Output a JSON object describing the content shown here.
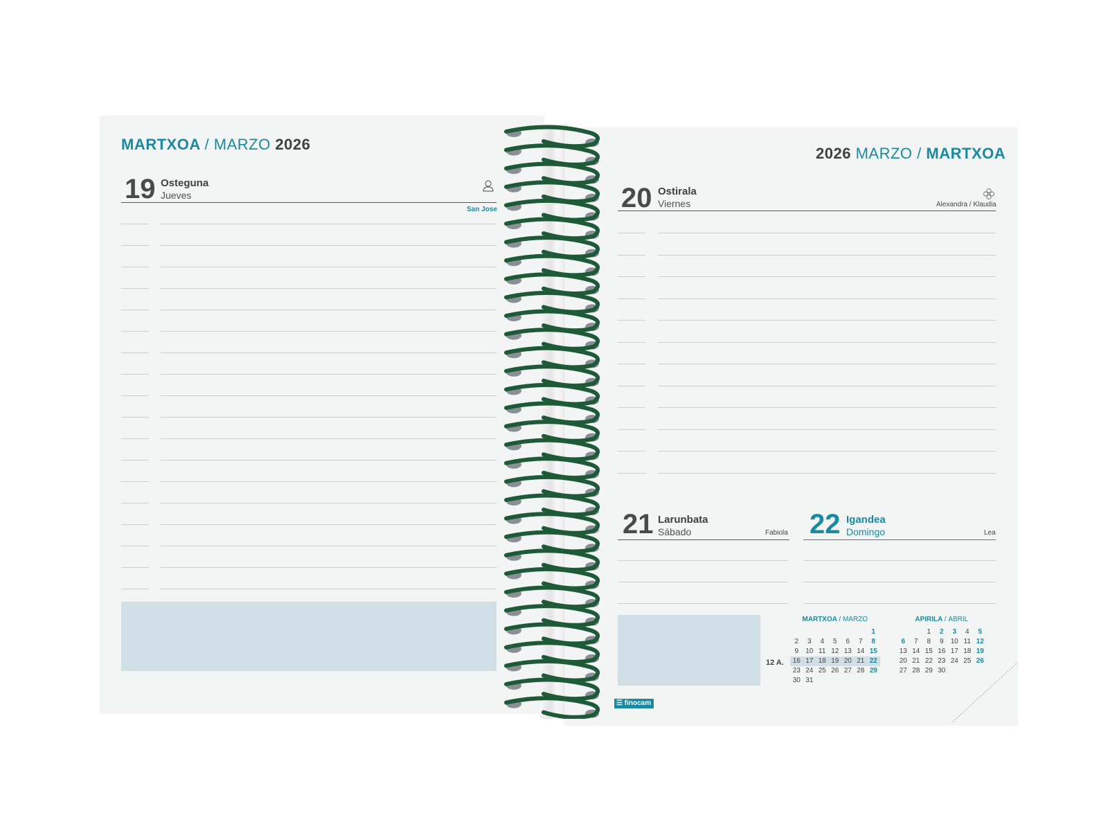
{
  "left_page": {
    "header": {
      "month_eu": "MARTXOA",
      "sep": "/",
      "month_es": "MARZO",
      "year": "2026"
    },
    "day": {
      "number": "19",
      "name_eu": "Osteguna",
      "name_es": "Jueves",
      "saint": "San Jose",
      "icon": "person-icon"
    }
  },
  "right_page": {
    "header": {
      "year": "2026",
      "month_es": "MARZO",
      "sep": "/",
      "month_eu": "MARTXOA"
    },
    "day": {
      "number": "20",
      "name_eu": "Ostirala",
      "name_es": "Viernes",
      "saint": "Alexandra / Klaudia",
      "icon": "flower-icon"
    },
    "day_sat": {
      "number": "21",
      "name_eu": "Larunbata",
      "name_es": "Sábado",
      "saint": "Fabiola"
    },
    "day_sun": {
      "number": "22",
      "name_eu": "Igandea",
      "name_es": "Domingo",
      "saint": "Lea"
    },
    "week_label": "12 A.",
    "mini_calendars": [
      {
        "title_eu": "MARTXOA",
        "sep": "/",
        "title_es": "MARZO",
        "weeks": [
          [
            "",
            "",
            "",
            "",
            "",
            "",
            "1"
          ],
          [
            "2",
            "3",
            "4",
            "5",
            "6",
            "7",
            "8"
          ],
          [
            "9",
            "10",
            "11",
            "12",
            "13",
            "14",
            "15"
          ],
          [
            "16",
            "17",
            "18",
            "19",
            "20",
            "21",
            "22"
          ],
          [
            "23",
            "24",
            "25",
            "26",
            "27",
            "28",
            "29"
          ],
          [
            "30",
            "31",
            "",
            "",
            "",
            "",
            ""
          ]
        ],
        "highlight_week": 3
      },
      {
        "title_eu": "APIRILA",
        "sep": "/",
        "title_es": "ABRIL",
        "weeks": [
          [
            "",
            "",
            "1",
            "2",
            "3",
            "4",
            "5"
          ],
          [
            "6",
            "7",
            "8",
            "9",
            "10",
            "11",
            "12"
          ],
          [
            "13",
            "14",
            "15",
            "16",
            "17",
            "18",
            "19"
          ],
          [
            "20",
            "21",
            "22",
            "23",
            "24",
            "25",
            "26"
          ],
          [
            "27",
            "28",
            "29",
            "30",
            "",
            "",
            ""
          ]
        ],
        "holidays": [
          "2",
          "3",
          "6"
        ]
      }
    ],
    "brand": "finocam"
  },
  "colors": {
    "accent": "#1a8aa0",
    "coil": "#1f5a38",
    "note_box": "#cfdfe5",
    "paper": "#f3f4f4"
  }
}
